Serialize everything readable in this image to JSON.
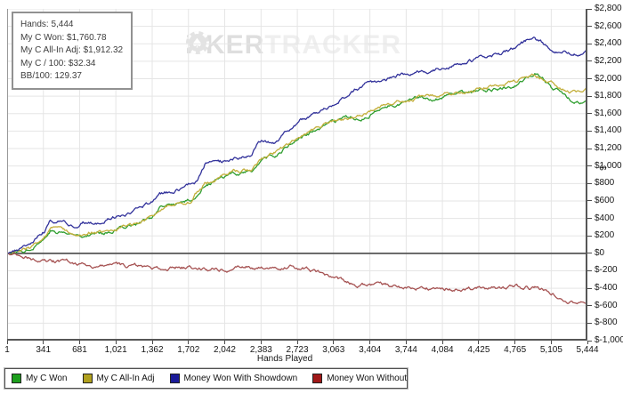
{
  "info_box": {
    "lines": [
      "Hands: 5,444",
      "My C Won: $1,760.78",
      "My C All-In Adj: $1,912.32",
      "My C / 100: $32.34",
      "BB/100: 129.37"
    ]
  },
  "watermark": {
    "part1": "P",
    "part2": "KER",
    "part3": "TRACKER",
    "chip_icon": "poker-chip-icon"
  },
  "chart_data": {
    "type": "line",
    "title": "",
    "xlabel": "Hands Played",
    "ylabel": "$",
    "xlim": [
      1,
      5444
    ],
    "ylim": [
      -1000,
      2800
    ],
    "grid": true,
    "legend_position": "bottom",
    "x_tick_labels": [
      "1",
      "341",
      "681",
      "1,021",
      "1,362",
      "1,702",
      "2,042",
      "2,383",
      "2,723",
      "3,063",
      "3,404",
      "3,744",
      "4,084",
      "4,425",
      "4,765",
      "5,105",
      "5,444"
    ],
    "x_tick_values": [
      1,
      341,
      681,
      1021,
      1362,
      1702,
      2042,
      2383,
      2723,
      3063,
      3404,
      3744,
      4084,
      4425,
      4765,
      5105,
      5444
    ],
    "y_tick_labels": [
      "$2,800",
      "$2,600",
      "$2,400",
      "$2,200",
      "$2,000",
      "$1,800",
      "$1,600",
      "$1,400",
      "$1,200",
      "$1,000",
      "$800",
      "$600",
      "$400",
      "$200",
      "$0",
      "$-200",
      "$-400",
      "$-600",
      "$-800",
      "$-1,000"
    ],
    "y_tick_values": [
      2800,
      2600,
      2400,
      2200,
      2000,
      1800,
      1600,
      1400,
      1200,
      1000,
      800,
      600,
      400,
      200,
      0,
      -200,
      -400,
      -600,
      -800,
      -1000
    ],
    "series": [
      {
        "name": "My C Won",
        "color": "#2f9e2f",
        "end_value": 1760.78,
        "points": [
          [
            1,
            0
          ],
          [
            100,
            15
          ],
          [
            210,
            60
          ],
          [
            300,
            140
          ],
          [
            352,
            175
          ],
          [
            410,
            280
          ],
          [
            460,
            235
          ],
          [
            520,
            245
          ],
          [
            620,
            210
          ],
          [
            680,
            208
          ],
          [
            770,
            236
          ],
          [
            840,
            230
          ],
          [
            900,
            245
          ],
          [
            980,
            270
          ],
          [
            1050,
            295
          ],
          [
            1130,
            320
          ],
          [
            1200,
            340
          ],
          [
            1270,
            370
          ],
          [
            1330,
            390
          ],
          [
            1380,
            430
          ],
          [
            1430,
            500
          ],
          [
            1500,
            530
          ],
          [
            1600,
            570
          ],
          [
            1660,
            585
          ],
          [
            1720,
            612
          ],
          [
            1790,
            660
          ],
          [
            1830,
            750
          ],
          [
            1860,
            800
          ],
          [
            1930,
            830
          ],
          [
            2004,
            853
          ],
          [
            2080,
            880
          ],
          [
            2160,
            915
          ],
          [
            2230,
            930
          ],
          [
            2300,
            950
          ],
          [
            2360,
            1040
          ],
          [
            2420,
            1080
          ],
          [
            2520,
            1100
          ],
          [
            2605,
            1200
          ],
          [
            2690,
            1284
          ],
          [
            2760,
            1330
          ],
          [
            2880,
            1400
          ],
          [
            2960,
            1440
          ],
          [
            3060,
            1480
          ],
          [
            3150,
            1520
          ],
          [
            3270,
            1554
          ],
          [
            3356,
            1572
          ],
          [
            3460,
            1620
          ],
          [
            3560,
            1680
          ],
          [
            3660,
            1720
          ],
          [
            3744,
            1740
          ],
          [
            3850,
            1760
          ],
          [
            3940,
            1777
          ],
          [
            4080,
            1790
          ],
          [
            4200,
            1820
          ],
          [
            4320,
            1830
          ],
          [
            4425,
            1850
          ],
          [
            4540,
            1880
          ],
          [
            4660,
            1900
          ],
          [
            4780,
            1950
          ],
          [
            4884,
            2034
          ],
          [
            4950,
            2050
          ],
          [
            5040,
            1980
          ],
          [
            5105,
            1895
          ],
          [
            5180,
            1840
          ],
          [
            5260,
            1780
          ],
          [
            5340,
            1735
          ],
          [
            5400,
            1720
          ],
          [
            5444,
            1760.78
          ]
        ]
      },
      {
        "name": "My C All-In Adj",
        "color": "#c3af3c",
        "end_value": 1912.32,
        "points": [
          [
            1,
            0
          ],
          [
            210,
            65
          ],
          [
            352,
            185
          ],
          [
            410,
            285
          ],
          [
            520,
            255
          ],
          [
            680,
            220
          ],
          [
            770,
            245
          ],
          [
            900,
            255
          ],
          [
            1050,
            305
          ],
          [
            1200,
            350
          ],
          [
            1330,
            400
          ],
          [
            1430,
            505
          ],
          [
            1600,
            580
          ],
          [
            1720,
            620
          ],
          [
            1860,
            810
          ],
          [
            2004,
            860
          ],
          [
            2160,
            930
          ],
          [
            2300,
            965
          ],
          [
            2420,
            1090
          ],
          [
            2605,
            1215
          ],
          [
            2690,
            1295
          ],
          [
            2880,
            1415
          ],
          [
            3060,
            1500
          ],
          [
            3270,
            1575
          ],
          [
            3460,
            1640
          ],
          [
            3660,
            1745
          ],
          [
            3850,
            1785
          ],
          [
            3940,
            1800
          ],
          [
            4080,
            1815
          ],
          [
            4200,
            1845
          ],
          [
            4320,
            1855
          ],
          [
            4425,
            1875
          ],
          [
            4540,
            1905
          ],
          [
            4660,
            1925
          ],
          [
            4780,
            1975
          ],
          [
            4884,
            2050
          ],
          [
            4950,
            2070
          ],
          [
            5040,
            2005
          ],
          [
            5105,
            1950
          ],
          [
            5180,
            1905
          ],
          [
            5260,
            1870
          ],
          [
            5340,
            1845
          ],
          [
            5400,
            1855
          ],
          [
            5444,
            1912.32
          ]
        ]
      },
      {
        "name": "Money Won With Showdown",
        "color": "#32329b",
        "end_value": 2340,
        "points": [
          [
            1,
            0
          ],
          [
            100,
            30
          ],
          [
            210,
            110
          ],
          [
            300,
            210
          ],
          [
            352,
            255
          ],
          [
            410,
            370
          ],
          [
            460,
            330
          ],
          [
            520,
            350
          ],
          [
            620,
            325
          ],
          [
            680,
            330
          ],
          [
            770,
            370
          ],
          [
            840,
            360
          ],
          [
            900,
            390
          ],
          [
            980,
            420
          ],
          [
            1050,
            445
          ],
          [
            1130,
            470
          ],
          [
            1200,
            490
          ],
          [
            1270,
            520
          ],
          [
            1330,
            545
          ],
          [
            1380,
            590
          ],
          [
            1430,
            660
          ],
          [
            1500,
            690
          ],
          [
            1600,
            730
          ],
          [
            1660,
            745
          ],
          [
            1720,
            775
          ],
          [
            1790,
            830
          ],
          [
            1830,
            950
          ],
          [
            1860,
            1030
          ],
          [
            1930,
            1045
          ],
          [
            2004,
            1040
          ],
          [
            2080,
            1060
          ],
          [
            2160,
            1085
          ],
          [
            2230,
            1100
          ],
          [
            2300,
            1150
          ],
          [
            2360,
            1270
          ],
          [
            2420,
            1300
          ],
          [
            2520,
            1265
          ],
          [
            2605,
            1370
          ],
          [
            2690,
            1440
          ],
          [
            2760,
            1520
          ],
          [
            2880,
            1600
          ],
          [
            2960,
            1640
          ],
          [
            3060,
            1700
          ],
          [
            3150,
            1760
          ],
          [
            3270,
            1880
          ],
          [
            3356,
            1930
          ],
          [
            3460,
            1960
          ],
          [
            3560,
            2000
          ],
          [
            3660,
            2040
          ],
          [
            3744,
            2060
          ],
          [
            3850,
            2090
          ],
          [
            3940,
            2100
          ],
          [
            4080,
            2140
          ],
          [
            4200,
            2180
          ],
          [
            4320,
            2200
          ],
          [
            4425,
            2230
          ],
          [
            4540,
            2270
          ],
          [
            4660,
            2300
          ],
          [
            4780,
            2350
          ],
          [
            4900,
            2440
          ],
          [
            4950,
            2465
          ],
          [
            5040,
            2395
          ],
          [
            5105,
            2345
          ],
          [
            5180,
            2320
          ],
          [
            5260,
            2290
          ],
          [
            5340,
            2270
          ],
          [
            5400,
            2285
          ],
          [
            5444,
            2340
          ]
        ]
      },
      {
        "name": "Money Won Without Showdown",
        "color": "#a65353",
        "end_value": -580,
        "points": [
          [
            1,
            0
          ],
          [
            60,
            -15
          ],
          [
            120,
            -30
          ],
          [
            180,
            -45
          ],
          [
            243,
            -60
          ],
          [
            350,
            -80
          ],
          [
            450,
            -95
          ],
          [
            560,
            -110
          ],
          [
            685,
            -123
          ],
          [
            770,
            -135
          ],
          [
            900,
            -145
          ],
          [
            1050,
            -150
          ],
          [
            1200,
            -152
          ],
          [
            1353,
            -155
          ],
          [
            1500,
            -158
          ],
          [
            1700,
            -162
          ],
          [
            1900,
            -180
          ],
          [
            2100,
            -165
          ],
          [
            2300,
            -158
          ],
          [
            2500,
            -155
          ],
          [
            2690,
            -156
          ],
          [
            2800,
            -185
          ],
          [
            2900,
            -215
          ],
          [
            3000,
            -260
          ],
          [
            3100,
            -300
          ],
          [
            3200,
            -340
          ],
          [
            3272,
            -355
          ],
          [
            3400,
            -365
          ],
          [
            3550,
            -380
          ],
          [
            3748,
            -390
          ],
          [
            3850,
            -388
          ],
          [
            4000,
            -392
          ],
          [
            4150,
            -398
          ],
          [
            4300,
            -400
          ],
          [
            4450,
            -405
          ],
          [
            4608,
            -408
          ],
          [
            4700,
            -400
          ],
          [
            4800,
            -395
          ],
          [
            4900,
            -400
          ],
          [
            5000,
            -415
          ],
          [
            5105,
            -450
          ],
          [
            5180,
            -490
          ],
          [
            5260,
            -525
          ],
          [
            5340,
            -550
          ],
          [
            5400,
            -560
          ],
          [
            5444,
            -580
          ]
        ]
      }
    ]
  },
  "legend": {
    "items": [
      {
        "label": "My C Won",
        "color": "#1c9e1c"
      },
      {
        "label": "My C All-In Adj",
        "color": "#b0a01e"
      },
      {
        "label": "Money Won With Showdown",
        "color": "#1b1b99"
      },
      {
        "label": "Money Won Without Showdown",
        "color": "#a01818"
      }
    ]
  },
  "colors": {
    "grid": "#e5e5e5",
    "zero_line": "#565656",
    "axis": "#4a4a4a",
    "plot_border_left": "#9a9a9a",
    "watermark_dark": "#dedede",
    "watermark_light": "#efefef"
  }
}
